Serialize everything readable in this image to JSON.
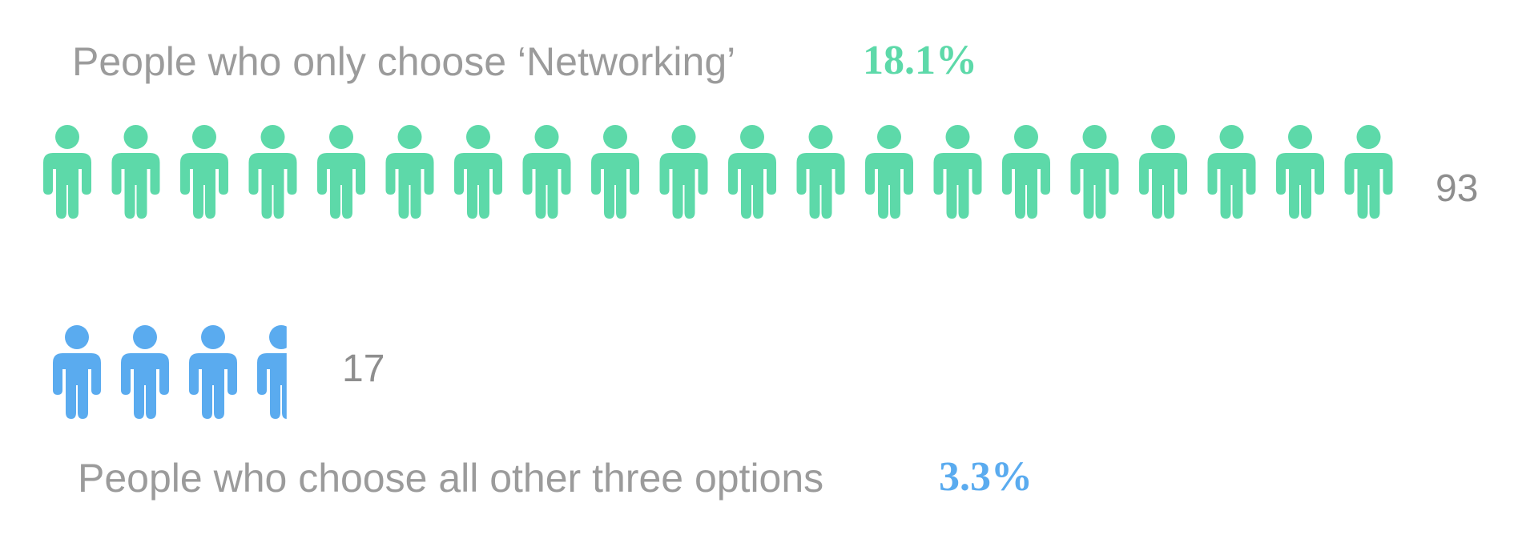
{
  "chart_data": {
    "type": "pictograph",
    "rows": [
      {
        "label": "People who only choose ‘Networking’",
        "percent": "18.1%",
        "count": 93,
        "count_label": "93",
        "icons": 20,
        "color": "#5dd9a9"
      },
      {
        "label": "People who choose all other three options",
        "percent": "3.3%",
        "count": 17,
        "count_label": "17",
        "icons": 3.6,
        "color": "#5aabef"
      }
    ]
  }
}
